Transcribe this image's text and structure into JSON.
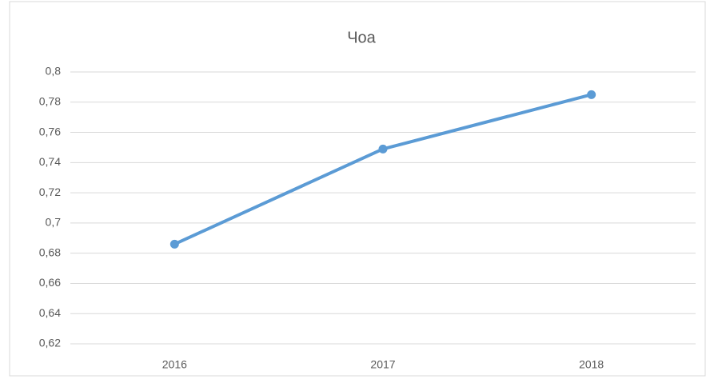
{
  "chart_data": {
    "type": "line",
    "title": "Чоа",
    "categories": [
      "2016",
      "2017",
      "2018"
    ],
    "values": [
      0.686,
      0.749,
      0.785
    ],
    "color": "#5b9bd5",
    "ylim": [
      0.62,
      0.8
    ],
    "yticks": [
      {
        "value": 0.62,
        "label": "0,62"
      },
      {
        "value": 0.64,
        "label": "0,64"
      },
      {
        "value": 0.66,
        "label": "0,66"
      },
      {
        "value": 0.68,
        "label": "0,68"
      },
      {
        "value": 0.7,
        "label": "0,7"
      },
      {
        "value": 0.72,
        "label": "0,72"
      },
      {
        "value": 0.74,
        "label": "0,74"
      },
      {
        "value": 0.76,
        "label": "0,76"
      },
      {
        "value": 0.78,
        "label": "0,78"
      },
      {
        "value": 0.8,
        "label": "0,8"
      }
    ],
    "grid": true
  }
}
